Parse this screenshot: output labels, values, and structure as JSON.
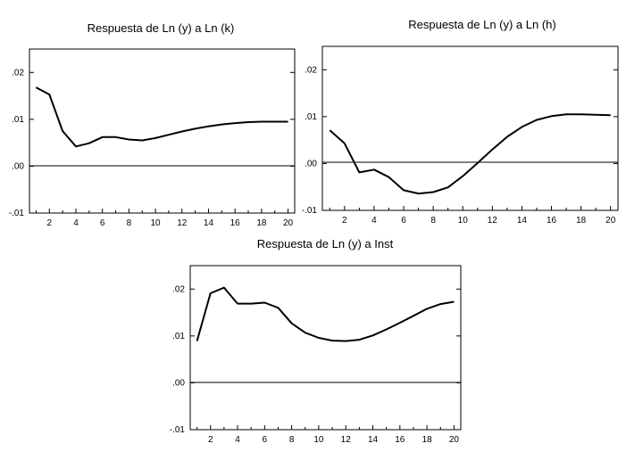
{
  "chart_data": [
    {
      "type": "line",
      "title": "Respuesta de Ln (y) a Ln (k)",
      "x": [
        1,
        2,
        3,
        4,
        5,
        6,
        7,
        8,
        9,
        10,
        11,
        12,
        13,
        14,
        15,
        16,
        17,
        18,
        19,
        20
      ],
      "series": [
        {
          "name": "Respuesta de Ln (y) a Ln (k)",
          "values": [
            0.0168,
            0.0153,
            0.0075,
            0.0042,
            0.0049,
            0.0062,
            0.0062,
            0.0057,
            0.0055,
            0.006,
            0.0067,
            0.0074,
            0.008,
            0.0085,
            0.0089,
            0.0092,
            0.0094,
            0.0095,
            0.0095,
            0.0095
          ]
        }
      ],
      "ylim": [
        -0.01,
        0.025
      ],
      "yticks": [
        0.02,
        0.01,
        0.0,
        -0.01
      ],
      "ytick_labels": [
        ".02",
        ".01",
        ".00",
        "-.01"
      ],
      "xticks": [
        2,
        4,
        6,
        8,
        10,
        12,
        14,
        16,
        18,
        20
      ],
      "xtick_labels": [
        "2",
        "4",
        "6",
        "8",
        "10",
        "12",
        "14",
        "16",
        "18",
        "20"
      ],
      "zero_line": true,
      "xlabel": "",
      "ylabel": "",
      "color": "#000000"
    },
    {
      "type": "line",
      "title": "Respuesta de Ln (y) a Ln (h)",
      "x": [
        1,
        2,
        3,
        4,
        5,
        6,
        7,
        8,
        9,
        10,
        11,
        12,
        13,
        14,
        15,
        16,
        17,
        18,
        19,
        20
      ],
      "series": [
        {
          "name": "Respuesta de Ln (y) a Ln (h)",
          "values": [
            0.0071,
            0.0043,
            -0.0019,
            -0.0013,
            -0.0029,
            -0.0057,
            -0.0064,
            -0.0061,
            -0.0051,
            -0.0027,
            0.0001,
            0.003,
            0.0057,
            0.0078,
            0.0093,
            0.0101,
            0.0105,
            0.0105,
            0.0104,
            0.0103
          ]
        }
      ],
      "ylim": [
        -0.01,
        0.025
      ],
      "yticks": [
        0.02,
        0.01,
        0.0,
        -0.01
      ],
      "ytick_labels": [
        ".02",
        ".01",
        ".00",
        "-.01"
      ],
      "xticks": [
        2,
        4,
        6,
        8,
        10,
        12,
        14,
        16,
        18,
        20
      ],
      "xtick_labels": [
        "2",
        "4",
        "6",
        "8",
        "10",
        "12",
        "14",
        "16",
        "18",
        "20"
      ],
      "zero_line": true,
      "xlabel": "",
      "ylabel": "",
      "color": "#000000"
    },
    {
      "type": "line",
      "title": "Respuesta de Ln (y) a Inst",
      "x": [
        1,
        2,
        3,
        4,
        5,
        6,
        7,
        8,
        9,
        10,
        11,
        12,
        13,
        14,
        15,
        16,
        17,
        18,
        19,
        20
      ],
      "series": [
        {
          "name": "Respuesta de Ln (y) a Inst",
          "values": [
            0.0089,
            0.0191,
            0.0203,
            0.0169,
            0.0169,
            0.0171,
            0.016,
            0.0127,
            0.0107,
            0.0096,
            0.009,
            0.0089,
            0.0092,
            0.0101,
            0.0114,
            0.0128,
            0.0143,
            0.0158,
            0.0168,
            0.0173
          ]
        }
      ],
      "ylim": [
        -0.01,
        0.025
      ],
      "yticks": [
        0.02,
        0.01,
        0.0,
        -0.01
      ],
      "ytick_labels": [
        ".02",
        ".01",
        ".00",
        "-.01"
      ],
      "xticks": [
        2,
        4,
        6,
        8,
        10,
        12,
        14,
        16,
        18,
        20
      ],
      "xtick_labels": [
        "2",
        "4",
        "6",
        "8",
        "10",
        "12",
        "14",
        "16",
        "18",
        "20"
      ],
      "zero_line": true,
      "xlabel": "",
      "ylabel": "",
      "color": "#000000"
    }
  ]
}
